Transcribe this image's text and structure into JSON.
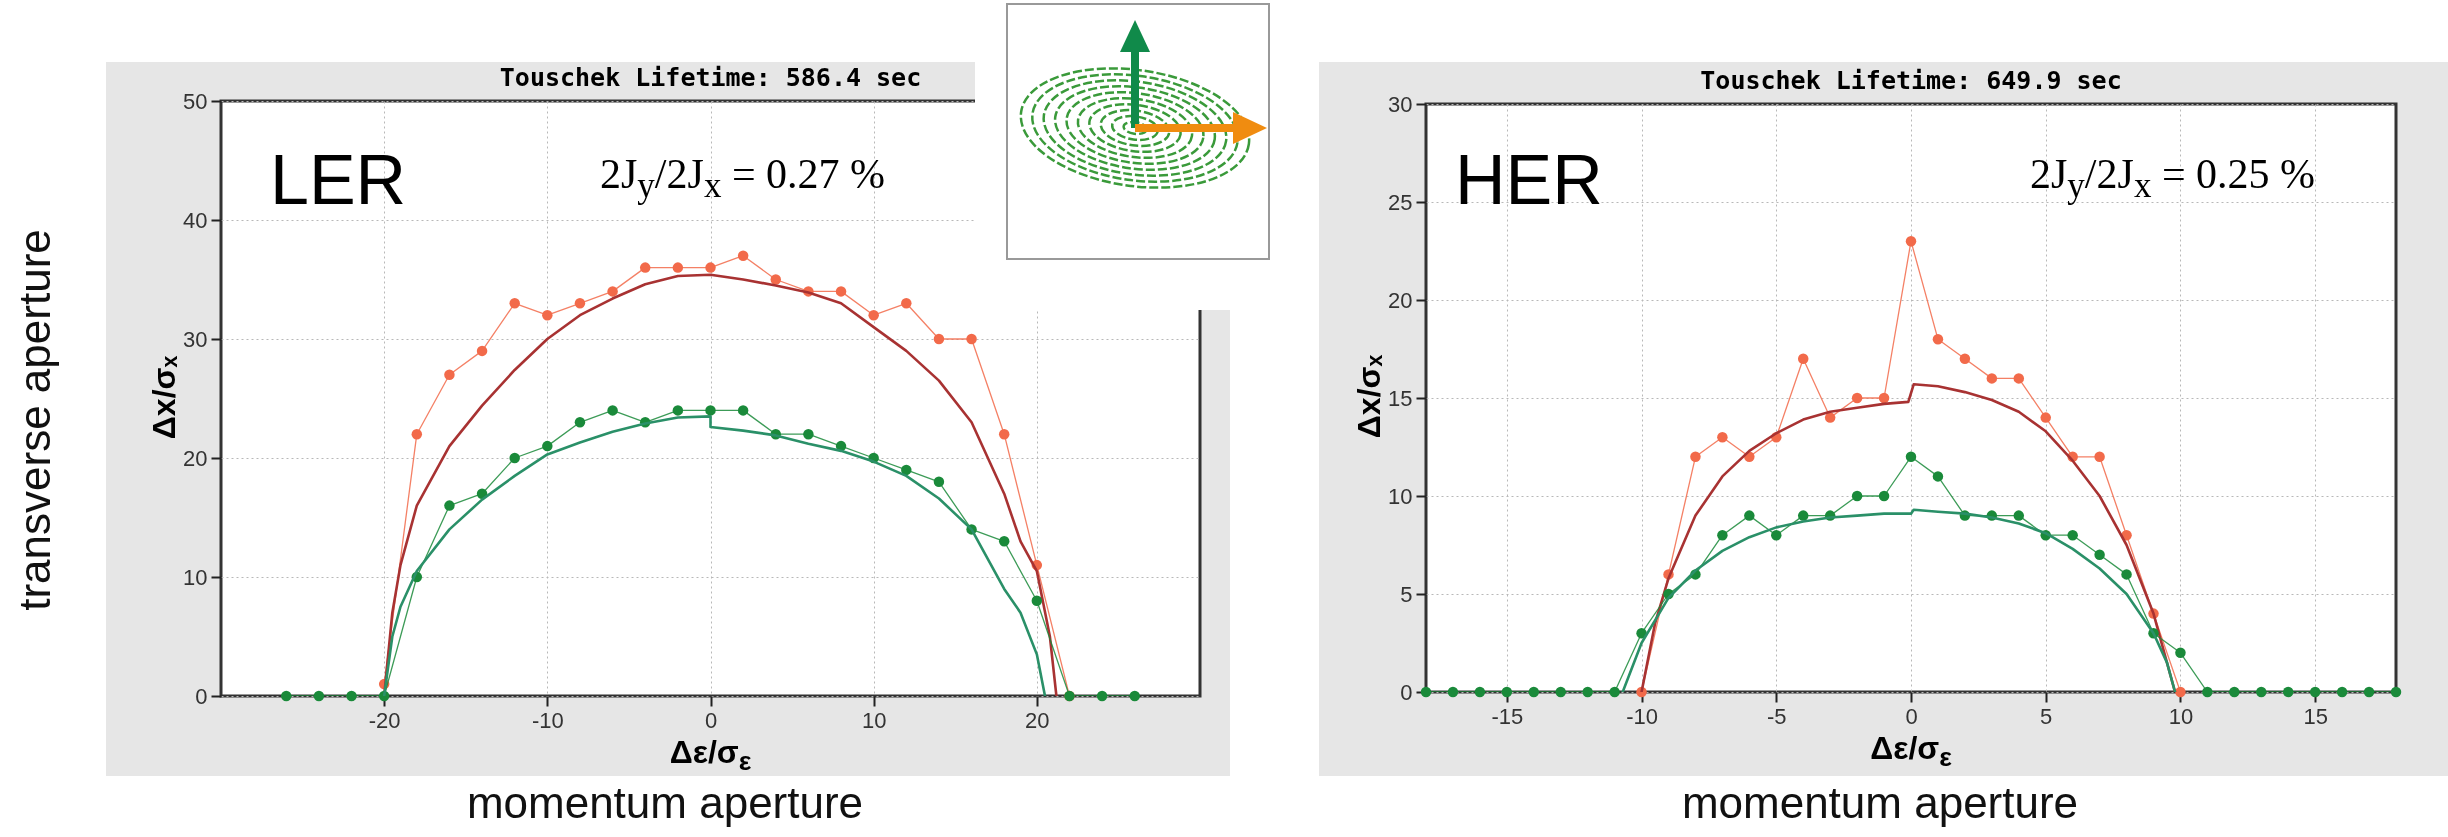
{
  "chart_data": [
    {
      "type": "line",
      "title": "Touschek Lifetime: 586.4 sec",
      "xlabel": "Δε/σ$_{ε}$",
      "ylabel": "Δx/σₓ",
      "xlim": [
        -30,
        30
      ],
      "xticks": [
        -20,
        -10,
        0,
        10,
        20
      ],
      "ylim": [
        0,
        50
      ],
      "yticks": [
        0,
        10,
        20,
        30,
        40,
        50
      ],
      "grid": true,
      "marker": "circle",
      "line_style": "solid",
      "annotations": [
        "LER",
        "2J$_{y}$/2J$_{x}$ = 0.27 %",
        "transverse aperture",
        "momentum aperture"
      ],
      "series": [
        {
          "color": "#f26a4a",
          "x": [
            -20,
            -18,
            -16,
            -14,
            -12,
            -10,
            -8,
            -6,
            -4,
            -2,
            0,
            2,
            4,
            6,
            8,
            10,
            12,
            14,
            16,
            18,
            20,
            22
          ],
          "values": [
            1,
            22,
            27,
            29,
            33,
            32,
            33,
            34,
            36,
            36,
            36,
            37,
            35,
            34,
            34,
            32,
            33,
            30,
            30,
            22,
            11,
            0
          ]
        },
        {
          "color": "#a83232",
          "marker": "none",
          "x": [
            -20,
            -19.5,
            -19,
            -18,
            -16,
            -14,
            -12,
            -10,
            -8,
            -6,
            -4,
            -2,
            0,
            2,
            4,
            6,
            8,
            10,
            12,
            14,
            16,
            18,
            19,
            20,
            20.8,
            21.2
          ],
          "values": [
            0,
            7,
            11,
            16,
            21,
            24.4,
            27.4,
            30,
            32,
            33.4,
            34.6,
            35.3,
            35.4,
            35,
            34.5,
            33.9,
            33,
            31,
            29,
            26.5,
            23,
            17,
            13,
            10.5,
            5,
            0
          ]
        },
        {
          "color": "#1a8a3a",
          "x": [
            -26,
            -24,
            -22,
            -20,
            -18,
            -16,
            -14,
            -12,
            -10,
            -8,
            -6,
            -4,
            -2,
            0,
            2,
            4,
            6,
            8,
            10,
            12,
            14,
            16,
            18,
            20,
            22,
            24,
            26
          ],
          "values": [
            0,
            0,
            0,
            0,
            10,
            16,
            17,
            20,
            21,
            23,
            24,
            23,
            24,
            24,
            24,
            22,
            22,
            21,
            20,
            19,
            18,
            14,
            13,
            8,
            0,
            0,
            0
          ]
        },
        {
          "color": "#2a9068",
          "marker": "none",
          "x": [
            -20,
            -19.5,
            -19,
            -18,
            -16,
            -14,
            -12,
            -10,
            -8,
            -6,
            -4,
            -2,
            0,
            0,
            2,
            4,
            6,
            8,
            10,
            12,
            14,
            16,
            18,
            19,
            20,
            20.5
          ],
          "values": [
            0,
            5,
            7.5,
            10.5,
            14,
            16.5,
            18.5,
            20.3,
            21.3,
            22.2,
            22.9,
            23.4,
            23.5,
            22.6,
            22.3,
            21.9,
            21.2,
            20.6,
            19.7,
            18.5,
            16.6,
            14,
            9,
            7,
            3.5,
            0
          ]
        }
      ]
    },
    {
      "type": "line",
      "title": "Touschek Lifetime: 649.9 sec",
      "xlabel": "Δε/σ$_{ε}$",
      "ylabel": "Δx/σₓ",
      "xlim": [
        -18,
        18
      ],
      "xticks": [
        -15,
        -10,
        -5,
        0,
        5,
        10,
        15
      ],
      "ylim": [
        0,
        30
      ],
      "yticks": [
        0,
        5,
        10,
        15,
        20,
        25,
        30
      ],
      "grid": true,
      "marker": "circle",
      "line_style": "solid",
      "annotations": [
        "HER",
        "2J$_{y}$/2J$_{x}$ = 0.25 %",
        "momentum aperture"
      ],
      "series": [
        {
          "color": "#f26a4a",
          "x": [
            -10,
            -9,
            -8,
            -7,
            -6,
            -5,
            -4,
            -3,
            -2,
            -1,
            0,
            1,
            2,
            3,
            4,
            5,
            6,
            7,
            8,
            9,
            10
          ],
          "values": [
            0,
            6,
            12,
            13,
            12,
            13,
            17,
            14,
            15,
            15,
            23,
            18,
            17,
            16,
            16,
            14,
            12,
            12,
            8,
            4,
            0
          ]
        },
        {
          "color": "#a83232",
          "marker": "none",
          "x": [
            -10,
            -9.5,
            -9,
            -8,
            -7,
            -6,
            -5,
            -4,
            -3,
            -2,
            -1,
            -0.1,
            0.1,
            1,
            2,
            3,
            4,
            5,
            6,
            7,
            8,
            9,
            9.5,
            9.8
          ],
          "values": [
            0,
            3.5,
            5.8,
            9,
            11,
            12.3,
            13.2,
            13.9,
            14.3,
            14.5,
            14.7,
            14.8,
            15.7,
            15.6,
            15.3,
            14.9,
            14.3,
            13.3,
            11.8,
            10,
            7.5,
            4,
            1.5,
            0
          ]
        },
        {
          "color": "#1a8a3a",
          "x": [
            -18,
            -17,
            -16,
            -15,
            -14,
            -13,
            -12,
            -11,
            -10,
            -9,
            -8,
            -7,
            -6,
            -5,
            -4,
            -3,
            -2,
            -1,
            0,
            1,
            2,
            3,
            4,
            5,
            6,
            7,
            8,
            9,
            10,
            11,
            12,
            13,
            14,
            15,
            16,
            17,
            18
          ],
          "values": [
            0,
            0,
            0,
            0,
            0,
            0,
            0,
            0,
            3,
            5,
            6,
            8,
            9,
            8,
            9,
            9,
            10,
            10,
            12,
            11,
            9,
            9,
            9,
            8,
            8,
            7,
            6,
            3,
            2,
            0,
            0,
            0,
            0,
            0,
            0,
            0,
            0
          ]
        },
        {
          "color": "#2a9068",
          "marker": "none",
          "x": [
            -10.7,
            -10,
            -9,
            -8,
            -7,
            -6,
            -5,
            -4,
            -3,
            -2,
            -1,
            0,
            0.1,
            1,
            2,
            3,
            4,
            5,
            6,
            7,
            8,
            9,
            9.5,
            9.8
          ],
          "values": [
            0,
            2.5,
            4.8,
            6.2,
            7.2,
            7.9,
            8.4,
            8.7,
            8.9,
            9,
            9.1,
            9.1,
            9.3,
            9.2,
            9.1,
            8.9,
            8.6,
            8.1,
            7.3,
            6.3,
            5,
            3,
            1.5,
            0
          ]
        }
      ]
    }
  ]
}
